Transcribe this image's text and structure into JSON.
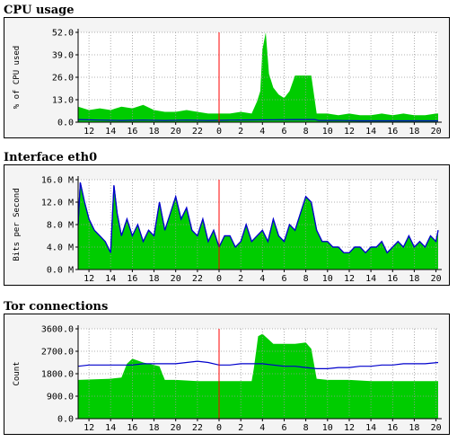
{
  "chart_data": [
    {
      "type": "area",
      "title": "CPU usage",
      "ylabel": "% of CPU used",
      "ylim": [
        0,
        52
      ],
      "yticks": [
        0,
        13,
        26,
        39,
        52
      ],
      "ytick_labels": [
        "0.0",
        "13.0",
        "26.0",
        "39.0",
        "52.0"
      ],
      "x_range": [
        11,
        44.2
      ],
      "x_ticks": [
        12,
        14,
        16,
        18,
        20,
        22,
        24,
        26,
        28,
        30,
        32,
        34,
        36,
        38,
        40,
        42,
        44
      ],
      "x_tick_labels": [
        "12",
        "14",
        "16",
        "18",
        "20",
        "22",
        "0",
        "2",
        "4",
        "6",
        "8",
        "10",
        "12",
        "14",
        "16",
        "18",
        "20"
      ],
      "now_marker_x": 24,
      "grid": true,
      "colors": {
        "area": "#00cc00",
        "line": "#0000cc",
        "now": "#ff0000"
      },
      "series": [
        {
          "type": "area",
          "x": [
            11,
            12,
            13,
            14,
            15,
            16,
            17,
            18,
            19,
            20,
            21,
            22,
            23,
            24,
            25,
            26,
            27,
            27.5,
            27.8,
            28,
            28.3,
            28.6,
            29,
            29.5,
            30,
            30.5,
            31,
            31.5,
            32,
            32.5,
            33,
            34,
            35,
            36,
            37,
            38,
            39,
            40,
            41,
            42,
            43,
            44,
            44.2
          ],
          "y": [
            9,
            7,
            8,
            7,
            9,
            8,
            10,
            7,
            6,
            6,
            7,
            6,
            5,
            5,
            5,
            6,
            5,
            12,
            18,
            42,
            52,
            28,
            20,
            16,
            14,
            18,
            27,
            27,
            27,
            27,
            5,
            5,
            4,
            5,
            4,
            4,
            5,
            4,
            5,
            4,
            4,
            5,
            5
          ]
        },
        {
          "type": "line",
          "x": [
            11,
            13,
            15,
            17,
            19,
            21,
            23,
            25,
            27,
            29,
            31,
            32.8,
            33.2,
            35,
            37,
            39,
            41,
            43,
            44.2
          ],
          "y": [
            1.5,
            1.2,
            1.0,
            1.2,
            1.0,
            1.2,
            1.0,
            1.2,
            1.3,
            1.4,
            1.5,
            1.5,
            1.0,
            1.0,
            0.8,
            0.8,
            0.8,
            0.8,
            0.8
          ]
        }
      ]
    },
    {
      "type": "area",
      "title": "Interface eth0",
      "ylabel": "Bits per Second",
      "ylim": [
        0,
        16
      ],
      "yticks": [
        0,
        4,
        8,
        12,
        16
      ],
      "ytick_labels": [
        "0.0 M",
        "4.0 M",
        "8.0 M",
        "12.0 M",
        "16.0 M"
      ],
      "x_range": [
        11,
        44.2
      ],
      "x_ticks": [
        12,
        14,
        16,
        18,
        20,
        22,
        24,
        26,
        28,
        30,
        32,
        34,
        36,
        38,
        40,
        42,
        44
      ],
      "x_tick_labels": [
        "12",
        "14",
        "16",
        "18",
        "20",
        "22",
        "0",
        "2",
        "4",
        "6",
        "8",
        "10",
        "12",
        "14",
        "16",
        "18",
        "20"
      ],
      "now_marker_x": 24,
      "grid": true,
      "colors": {
        "area": "#00cc00",
        "line": "#0000cc",
        "now": "#ff0000"
      },
      "series": [
        {
          "type": "area",
          "x": [
            11,
            11.2,
            11.6,
            12,
            12.5,
            13,
            13.5,
            14,
            14.3,
            14.6,
            15,
            15.5,
            16,
            16.5,
            17,
            17.5,
            18,
            18.5,
            19,
            19.5,
            20,
            20.5,
            21,
            21.5,
            22,
            22.5,
            23,
            23.5,
            24,
            24.5,
            25,
            25.5,
            26,
            26.5,
            27,
            27.5,
            28,
            28.5,
            29,
            29.5,
            30,
            30.5,
            31,
            31.5,
            32,
            32.5,
            33,
            33.5,
            34,
            34.5,
            35,
            35.5,
            36,
            36.5,
            37,
            37.5,
            38,
            38.5,
            39,
            39.5,
            40,
            40.5,
            41,
            41.5,
            42,
            42.5,
            43,
            43.5,
            44,
            44.2
          ],
          "y": [
            8,
            15.5,
            12,
            9,
            7,
            6,
            5,
            3,
            15,
            10,
            6,
            9,
            6,
            8,
            5,
            7,
            6,
            12,
            7,
            10,
            13,
            9,
            11,
            7,
            6,
            9,
            5,
            7,
            4,
            6,
            6,
            4,
            5,
            8,
            5,
            6,
            7,
            5,
            9,
            6,
            5,
            8,
            7,
            10,
            13,
            12,
            7,
            5,
            5,
            4,
            4,
            3,
            3,
            4,
            4,
            3,
            4,
            4,
            5,
            3,
            4,
            5,
            4,
            6,
            4,
            5,
            4,
            6,
            5,
            7
          ]
        },
        {
          "type": "line",
          "x": [
            11,
            11.2,
            11.6,
            12,
            12.5,
            13,
            13.5,
            14,
            14.3,
            14.6,
            15,
            15.5,
            16,
            16.5,
            17,
            17.5,
            18,
            18.5,
            19,
            19.5,
            20,
            20.5,
            21,
            21.5,
            22,
            22.5,
            23,
            23.5,
            24,
            24.5,
            25,
            25.5,
            26,
            26.5,
            27,
            27.5,
            28,
            28.5,
            29,
            29.5,
            30,
            30.5,
            31,
            31.5,
            32,
            32.5,
            33,
            33.5,
            34,
            34.5,
            35,
            35.5,
            36,
            36.5,
            37,
            37.5,
            38,
            38.5,
            39,
            39.5,
            40,
            40.5,
            41,
            41.5,
            42,
            42.5,
            43,
            43.5,
            44,
            44.2
          ],
          "y": [
            8,
            15.5,
            12,
            9,
            7,
            6,
            5,
            3,
            15,
            10,
            6,
            9,
            6,
            8,
            5,
            7,
            6,
            12,
            7,
            10,
            13,
            9,
            11,
            7,
            6,
            9,
            5,
            7,
            4,
            6,
            6,
            4,
            5,
            8,
            5,
            6,
            7,
            5,
            9,
            6,
            5,
            8,
            7,
            10,
            13,
            12,
            7,
            5,
            5,
            4,
            4,
            3,
            3,
            4,
            4,
            3,
            4,
            4,
            5,
            3,
            4,
            5,
            4,
            6,
            4,
            5,
            4,
            6,
            5,
            7
          ]
        }
      ]
    },
    {
      "type": "area",
      "title": "Tor connections",
      "ylabel": "Count",
      "ylim": [
        0,
        3600
      ],
      "yticks": [
        0,
        900,
        1800,
        2700,
        3600
      ],
      "ytick_labels": [
        "0.0",
        "900.0",
        "1800.0",
        "2700.0",
        "3600.0"
      ],
      "x_range": [
        11,
        44.2
      ],
      "x_ticks": [
        12,
        14,
        16,
        18,
        20,
        22,
        24,
        26,
        28,
        30,
        32,
        34,
        36,
        38,
        40,
        42,
        44
      ],
      "x_tick_labels": [
        "12",
        "14",
        "16",
        "18",
        "20",
        "22",
        "0",
        "2",
        "4",
        "6",
        "8",
        "10",
        "12",
        "14",
        "16",
        "18",
        "20"
      ],
      "now_marker_x": 24,
      "grid": true,
      "colors": {
        "area": "#00cc00",
        "line": "#0000cc",
        "now": "#ff0000"
      },
      "series": [
        {
          "type": "area",
          "x": [
            11,
            14,
            15,
            15.5,
            16,
            17,
            18.5,
            19,
            20,
            22,
            24,
            26,
            27,
            27.2,
            27.6,
            28,
            28.5,
            29,
            30,
            31,
            32,
            32.5,
            33,
            34,
            36,
            38,
            40,
            42,
            44.2
          ],
          "y": [
            1550,
            1600,
            1650,
            2200,
            2400,
            2250,
            2100,
            1550,
            1550,
            1500,
            1500,
            1500,
            1500,
            2000,
            3300,
            3400,
            3200,
            3000,
            3000,
            3000,
            3050,
            2800,
            1600,
            1550,
            1550,
            1500,
            1500,
            1500,
            1500
          ]
        },
        {
          "type": "line",
          "x": [
            11,
            12,
            13,
            14,
            15,
            16,
            17,
            18,
            19,
            20,
            21,
            22,
            23,
            24,
            25,
            26,
            27,
            28,
            29,
            30,
            31,
            32,
            33,
            34,
            35,
            36,
            37,
            38,
            39,
            40,
            41,
            42,
            43,
            44.2
          ],
          "y": [
            2100,
            2150,
            2150,
            2150,
            2150,
            2150,
            2200,
            2200,
            2200,
            2200,
            2250,
            2300,
            2250,
            2150,
            2150,
            2200,
            2200,
            2200,
            2150,
            2100,
            2100,
            2050,
            2000,
            2000,
            2050,
            2050,
            2100,
            2100,
            2150,
            2150,
            2200,
            2200,
            2200,
            2250
          ]
        }
      ]
    }
  ]
}
